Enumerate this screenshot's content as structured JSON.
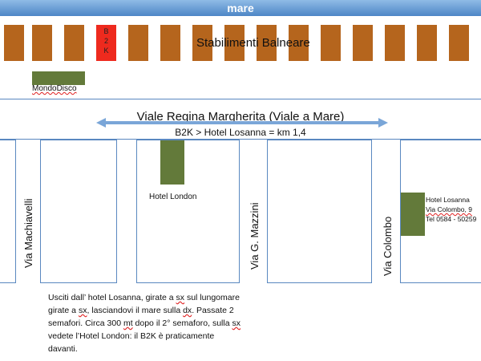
{
  "header": {
    "title": "mare"
  },
  "beach": {
    "label": "Stabilimenti Balneare",
    "b2k_letters": [
      "B",
      "2",
      "K"
    ]
  },
  "mondodisco": {
    "label": "MondoDisco"
  },
  "road": {
    "name": "Viale Regina Margherita (Viale a Mare)",
    "distance": "B2K > Hotel Losanna = km 1,4"
  },
  "streets": {
    "machiavelli": "Via Machiavelli",
    "mazzini": "Via G. Mazzini",
    "colombo": "Via Colombo"
  },
  "hotels": {
    "london": {
      "label": "Hotel London"
    },
    "losanna": {
      "name": "Hotel Losanna",
      "address": "Via Colombo, 9",
      "phone": "Tel 0584 - 50259"
    }
  },
  "directions": {
    "p1": "Usciti dall’ hotel Losanna, girate a ",
    "w1": "sx",
    "p2": " sul lungomare girate a ",
    "w2": "sx",
    "p3": ", lasciandovi il mare sulla ",
    "w3": "dx",
    "p4": ".   Passate 2 semafori. Circa 300 ",
    "w4": "mt",
    "p5": " dopo il 2° semaforo, sulla ",
    "w5": "sx",
    "p6": " vedete l’Hotel London: il B2K è praticamente davanti."
  },
  "colors": {
    "cabin": "#b5651d",
    "b2k_cabin": "#ee2a1e",
    "hotel": "#637a3a",
    "road_line": "#5a88c0",
    "header": "#4d86c6"
  }
}
